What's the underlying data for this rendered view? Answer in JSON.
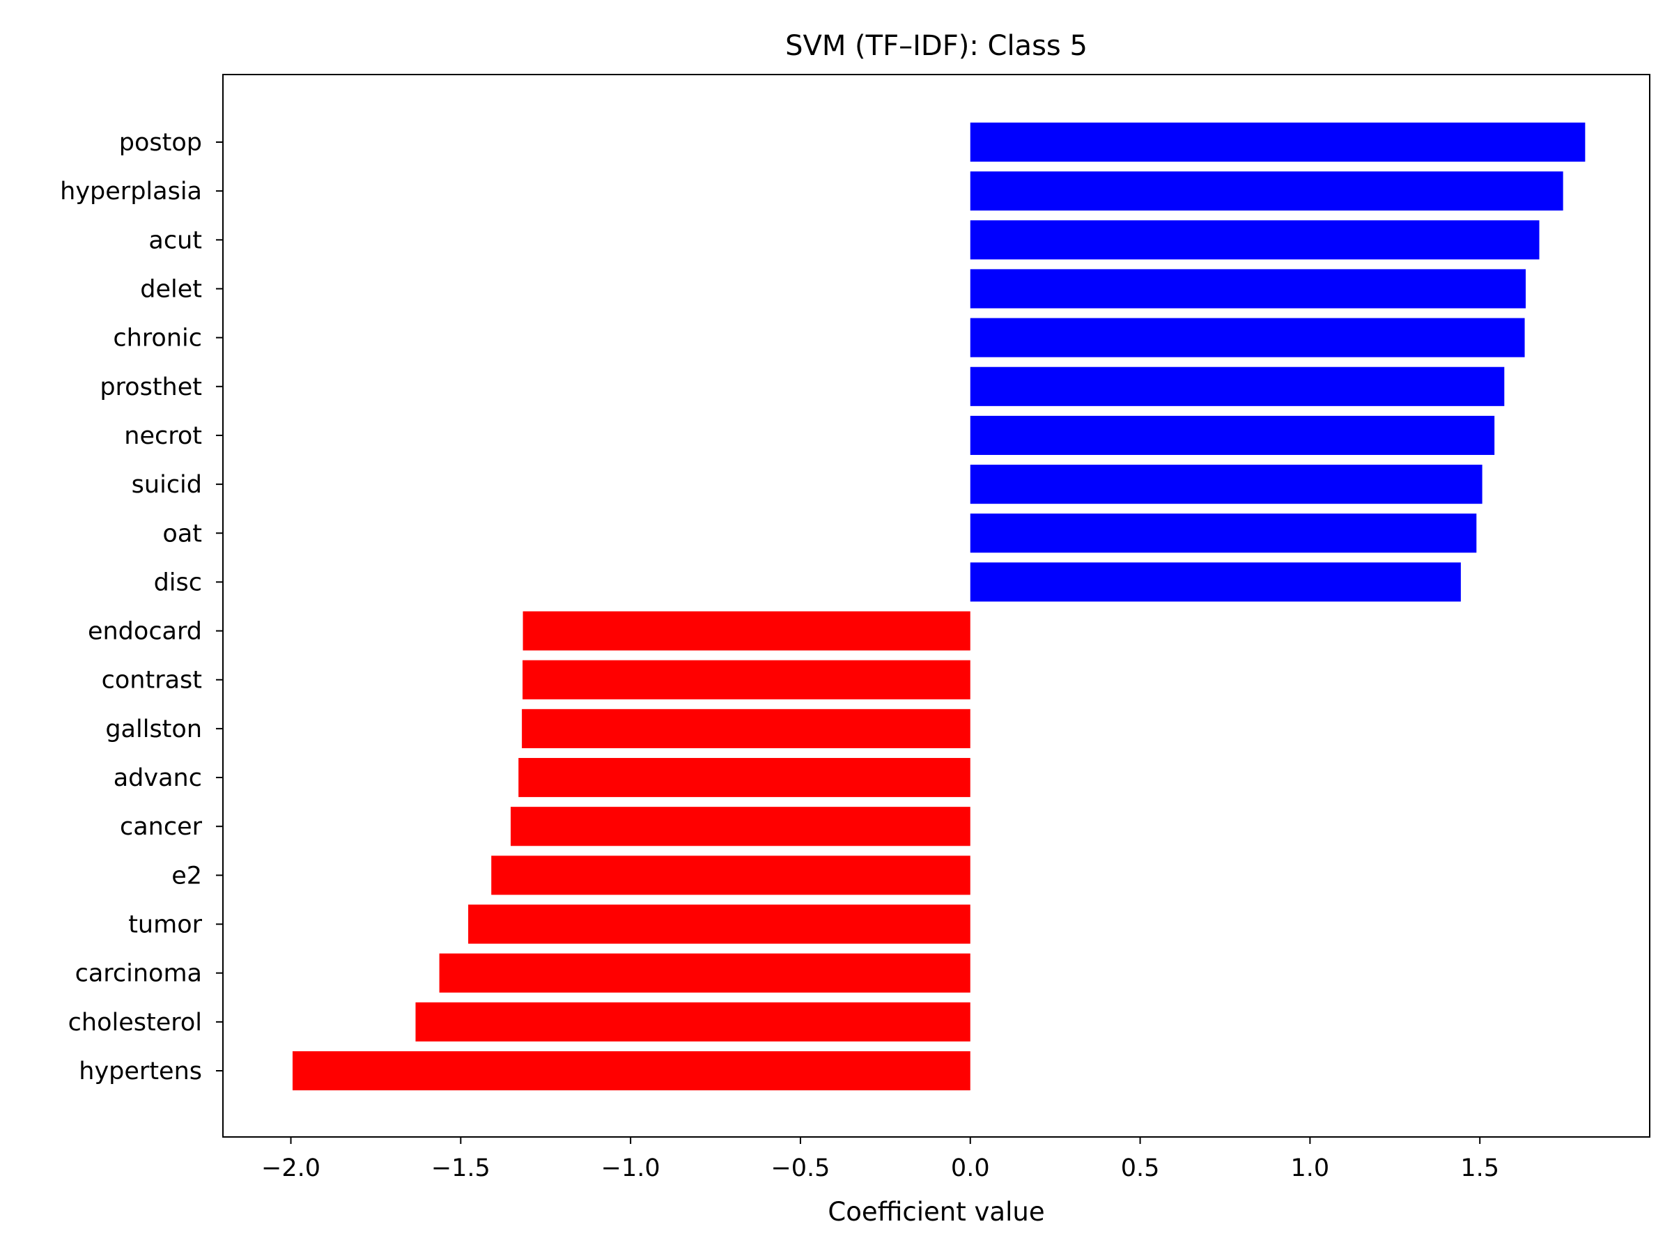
{
  "chart_data": {
    "type": "bar",
    "orientation": "horizontal",
    "title": "SVM (TF–IDF): Class 5",
    "xlabel": "Coefficient value",
    "ylabel": "",
    "xlim": [
      -2.2,
      2.0
    ],
    "xticks": [
      -2.0,
      -1.5,
      -1.0,
      -0.5,
      0.0,
      0.5,
      1.0,
      1.5
    ],
    "xtick_labels": [
      "−2.0",
      "−1.5",
      "−1.0",
      "−0.5",
      "0.0",
      "0.5",
      "1.0",
      "1.5"
    ],
    "grid": false,
    "colors": {
      "positive": "#0000ff",
      "negative": "#ff0000"
    },
    "categories": [
      "postop",
      "hyperplasia",
      "acut",
      "delet",
      "chronic",
      "prosthet",
      "necrot",
      "suicid",
      "oat",
      "disc",
      "endocard",
      "contrast",
      "gallston",
      "advanc",
      "cancer",
      "e2",
      "tumor",
      "carcinoma",
      "cholesterol",
      "hypertens"
    ],
    "values": [
      1.81,
      1.745,
      1.675,
      1.635,
      1.632,
      1.572,
      1.543,
      1.507,
      1.49,
      1.444,
      -1.317,
      -1.318,
      -1.32,
      -1.33,
      -1.353,
      -1.41,
      -1.478,
      -1.563,
      -1.633,
      -1.995
    ]
  }
}
